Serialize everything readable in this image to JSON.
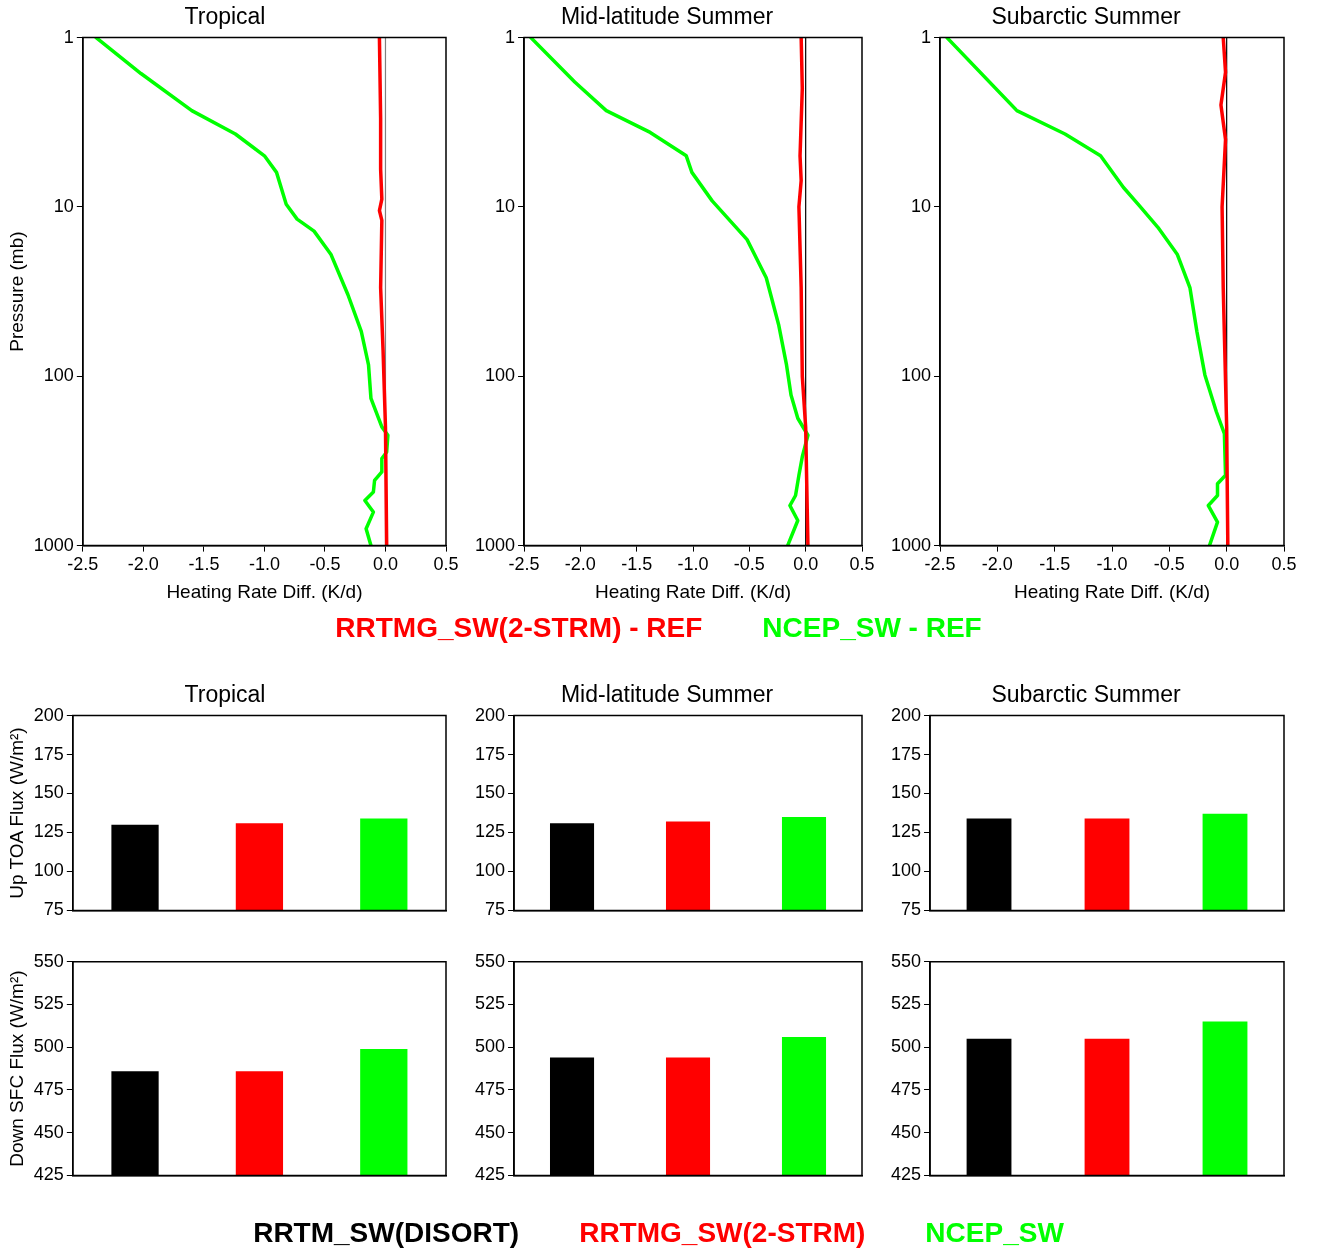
{
  "chart_data": [
    {
      "type": "line",
      "title": "Tropical",
      "xlabel": "Heating Rate Diff. (K/d)",
      "ylabel": "Pressure (mb)",
      "xlim": [
        -2.5,
        0.5
      ],
      "xticks": [
        -2.5,
        {
          "value": -2,
          "label": "-2.0"
        },
        -1.5,
        {
          "value": -1,
          "label": "-1.0"
        },
        -0.5,
        {
          "value": 0,
          "label": "0.0"
        },
        0.5
      ],
      "ylim": [
        1000,
        1
      ],
      "yticks": [
        1,
        10,
        100,
        1000
      ],
      "log": "y",
      "ref_lines": [
        {
          "axis": "x",
          "value": 0,
          "color": "#808080"
        }
      ],
      "series": [
        {
          "color": "#ff0000",
          "x": [
            -0.05,
            -0.04,
            -0.04,
            -0.03,
            -0.05,
            -0.03,
            -0.04,
            -0.02,
            0.0,
            0.01
          ],
          "values": [
            1,
            3,
            6,
            9,
            10.5,
            12,
            30,
            70,
            200,
            1000
          ]
        },
        {
          "color": "#00ff00",
          "x": [
            -2.39,
            -2.02,
            -1.6,
            -1.24,
            -1.0,
            -0.9,
            -0.82,
            -0.73,
            -0.59,
            -0.45,
            -0.31,
            -0.2,
            -0.14,
            -0.12,
            -0.03,
            0.02,
            0.01,
            -0.03,
            -0.03,
            -0.09,
            -0.1,
            -0.17,
            -0.1,
            -0.16,
            -0.12
          ],
          "values": [
            1,
            1.63,
            2.7,
            3.71,
            4.99,
            6.25,
            9.64,
            11.8,
            13.9,
            19.1,
            33,
            54.3,
            85.7,
            135,
            199,
            223,
            280,
            306,
            367,
            412,
            483,
            541,
            634,
            796,
            1000
          ]
        }
      ]
    },
    {
      "type": "line",
      "title": "Mid-latitude Summer",
      "xlabel": "Heating Rate Diff. (K/d)",
      "xlim": [
        -2.5,
        0.5
      ],
      "xticks": [
        -2.5,
        {
          "value": -2,
          "label": "-2.0"
        },
        -1.5,
        {
          "value": -1,
          "label": "-1.0"
        },
        -0.5,
        {
          "value": 0,
          "label": "0.0"
        },
        0.5
      ],
      "ylim": [
        1000,
        1
      ],
      "yticks": [
        1,
        10,
        100,
        1000
      ],
      "log": "y",
      "ref_lines": [
        {
          "axis": "x",
          "value": 0,
          "color": "#000000"
        }
      ],
      "legend": "bottom",
      "series": [
        {
          "name": "RRTMG_SW(2-STRM) - REF",
          "color": "#ff0000",
          "x": [
            -0.04,
            -0.03,
            -0.05,
            -0.04,
            -0.06,
            -0.04,
            -0.03,
            0.0,
            0.02
          ],
          "values": [
            1,
            2,
            5,
            7,
            10,
            30,
            100,
            200,
            1000
          ]
        },
        {
          "name": "NCEP_SW - REF",
          "color": "#00ff00",
          "x": [
            -2.44,
            -2.05,
            -1.77,
            -1.38,
            -1.06,
            -1.01,
            -0.83,
            -0.52,
            -0.35,
            -0.24,
            -0.17,
            -0.13,
            -0.07,
            0.02,
            -0.03,
            -0.06,
            -0.09,
            -0.14,
            -0.07,
            -0.16
          ],
          "values": [
            1,
            1.83,
            2.7,
            3.63,
            4.99,
            6.25,
            9.21,
            15.6,
            26.2,
            49.6,
            85.7,
            129,
            177,
            223,
            299,
            384,
            506,
            580,
            711,
            1000
          ]
        }
      ]
    },
    {
      "type": "line",
      "title": "Subarctic Summer",
      "xlabel": "Heating Rate Diff. (K/d)",
      "xlim": [
        -2.5,
        0.5
      ],
      "xticks": [
        -2.5,
        {
          "value": -2,
          "label": "-2.0"
        },
        -1.5,
        {
          "value": -1,
          "label": "-1.0"
        },
        -0.5,
        {
          "value": 0,
          "label": "0.0"
        },
        0.5
      ],
      "ylim": [
        1000,
        1
      ],
      "yticks": [
        1,
        10,
        100,
        1000
      ],
      "log": "y",
      "ref_lines": [
        {
          "axis": "x",
          "value": 0,
          "color": "#000000"
        }
      ],
      "series": [
        {
          "color": "#ff0000",
          "x": [
            -0.03,
            -0.01,
            -0.05,
            -0.01,
            -0.04,
            -0.03,
            0.0,
            0.01
          ],
          "values": [
            1,
            1.6,
            2.5,
            4,
            10,
            30,
            200,
            1000
          ]
        },
        {
          "color": "#00ff00",
          "x": [
            -2.44,
            -1.83,
            -1.41,
            -1.1,
            -0.9,
            -0.76,
            -0.6,
            -0.43,
            -0.32,
            -0.26,
            -0.19,
            -0.09,
            -0.02,
            -0.01,
            -0.08,
            -0.08,
            -0.16,
            -0.08,
            -0.15
          ],
          "values": [
            1,
            2.7,
            3.71,
            4.99,
            7.68,
            9.86,
            13.2,
            19.1,
            30.1,
            54.3,
            98.2,
            162,
            218,
            384,
            431,
            506,
            580,
            727,
            1000
          ]
        }
      ]
    },
    {
      "type": "bar",
      "title": "Tropical",
      "ylabel": "Up TOA Flux (W/m²)",
      "categories": [
        null,
        null,
        null
      ],
      "ylim": [
        75,
        200
      ],
      "yticks": [
        75,
        100,
        125,
        150,
        175,
        200
      ],
      "series": [
        {
          "color": "#000000",
          "values": [
            130,
            null,
            null
          ]
        },
        {
          "color": "#ff0000",
          "values": [
            null,
            131,
            null
          ]
        },
        {
          "color": "#00ff00",
          "values": [
            null,
            null,
            134
          ]
        }
      ]
    },
    {
      "type": "bar",
      "title": "Mid-latitude Summer",
      "categories": [
        null,
        null,
        null
      ],
      "ylim": [
        75,
        200
      ],
      "yticks": [
        75,
        100,
        125,
        150,
        175,
        200
      ],
      "series": [
        {
          "color": "#000000",
          "values": [
            131,
            null,
            null
          ]
        },
        {
          "color": "#ff0000",
          "values": [
            null,
            132,
            null
          ]
        },
        {
          "color": "#00ff00",
          "values": [
            null,
            null,
            135
          ]
        }
      ]
    },
    {
      "type": "bar",
      "title": "Subarctic Summer",
      "categories": [
        null,
        null,
        null
      ],
      "ylim": [
        75,
        200
      ],
      "yticks": [
        75,
        100,
        125,
        150,
        175,
        200
      ],
      "series": [
        {
          "color": "#000000",
          "values": [
            134,
            null,
            null
          ]
        },
        {
          "color": "#ff0000",
          "values": [
            null,
            134,
            null
          ]
        },
        {
          "color": "#00ff00",
          "values": [
            null,
            null,
            137
          ]
        }
      ]
    },
    {
      "type": "bar",
      "ylabel": "Down SFC Flux (W/m²)",
      "categories": [
        null,
        null,
        null
      ],
      "ylim": [
        425,
        550
      ],
      "yticks": [
        425,
        450,
        475,
        500,
        525,
        550
      ],
      "series": [
        {
          "color": "#000000",
          "values": [
            486,
            null,
            null
          ]
        },
        {
          "color": "#ff0000",
          "values": [
            null,
            486,
            null
          ]
        },
        {
          "color": "#00ff00",
          "values": [
            null,
            null,
            499
          ]
        }
      ]
    },
    {
      "type": "bar",
      "categories": [
        null,
        null,
        null
      ],
      "ylim": [
        425,
        550
      ],
      "yticks": [
        425,
        450,
        475,
        500,
        525,
        550
      ],
      "legend": "bottom",
      "series": [
        {
          "name": "RRTM_SW(DISORT)",
          "color": "#000000",
          "values": [
            494,
            null,
            null
          ]
        },
        {
          "name": "RRTMG_SW(2-STRM)",
          "color": "#ff0000",
          "values": [
            null,
            494,
            null
          ]
        },
        {
          "name": "NCEP_SW",
          "color": "#00ff00",
          "values": [
            null,
            null,
            506
          ]
        }
      ]
    },
    {
      "type": "bar",
      "categories": [
        null,
        null,
        null
      ],
      "ylim": [
        425,
        550
      ],
      "yticks": [
        425,
        450,
        475,
        500,
        525,
        550
      ],
      "series": [
        {
          "color": "#000000",
          "values": [
            505,
            null,
            null
          ]
        },
        {
          "color": "#ff0000",
          "values": [
            null,
            505,
            null
          ]
        },
        {
          "color": "#00ff00",
          "values": [
            null,
            null,
            515
          ]
        }
      ]
    }
  ]
}
